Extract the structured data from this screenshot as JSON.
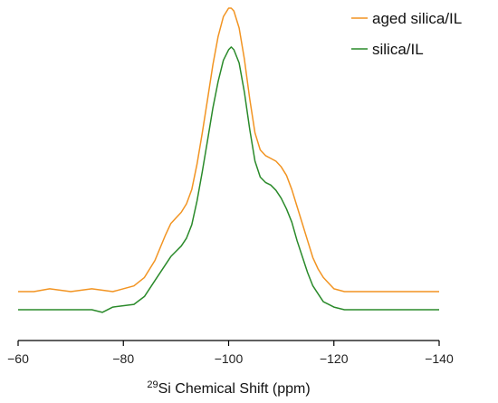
{
  "chart_data": {
    "type": "line",
    "title": "",
    "xlabel_sup": "29",
    "xlabel": "Si Chemical Shift (ppm)",
    "ylabel": "",
    "xlim": [
      -60,
      -140
    ],
    "x_reversed": true,
    "xticks": [
      -60,
      -80,
      -100,
      -120,
      -140
    ],
    "xtick_labels": [
      "−60",
      "−80",
      "−100",
      "−120",
      "−140"
    ],
    "y_axis_shown": false,
    "grid": false,
    "legend_position": "top-right",
    "series": [
      {
        "name": "aged silica/IL",
        "color": "#F29422",
        "x": [
          -60,
          -63,
          -66,
          -70,
          -74,
          -78,
          -82,
          -84,
          -86,
          -88,
          -89,
          -90,
          -91,
          -92,
          -93,
          -94,
          -95,
          -96,
          -97,
          -98,
          -99,
          -100,
          -100.5,
          -101,
          -102,
          -103,
          -104,
          -105,
          -106,
          -107,
          -108,
          -109,
          -110,
          -111,
          -112,
          -113,
          -114,
          -115,
          -116,
          -117,
          -118,
          -119,
          -120,
          -122,
          -125,
          -130,
          -135,
          -140
        ],
        "y": [
          0.0,
          0.0,
          0.01,
          0.0,
          0.01,
          0.0,
          0.02,
          0.05,
          0.11,
          0.2,
          0.24,
          0.26,
          0.28,
          0.31,
          0.36,
          0.45,
          0.56,
          0.68,
          0.8,
          0.9,
          0.97,
          1.0,
          1.0,
          0.99,
          0.93,
          0.82,
          0.68,
          0.56,
          0.5,
          0.48,
          0.47,
          0.46,
          0.44,
          0.41,
          0.36,
          0.3,
          0.24,
          0.18,
          0.12,
          0.08,
          0.05,
          0.03,
          0.01,
          0.0,
          0.0,
          0.0,
          0.0,
          0.0
        ]
      },
      {
        "name": "silica/IL",
        "color": "#2A8A2A",
        "x": [
          -60,
          -63,
          -66,
          -70,
          -74,
          -76,
          -78,
          -82,
          -84,
          -86,
          -88,
          -89,
          -90,
          -91,
          -92,
          -93,
          -94,
          -95,
          -96,
          -97,
          -98,
          -99,
          -100,
          -100.5,
          -101,
          -102,
          -103,
          -104,
          -105,
          -106,
          -107,
          -108,
          -109,
          -110,
          -111,
          -112,
          -113,
          -114,
          -115,
          -116,
          -117,
          -118,
          -119,
          -120,
          -122,
          -125,
          -130,
          -135,
          -140
        ],
        "y": [
          0.0,
          0.0,
          0.0,
          0.0,
          0.0,
          -0.01,
          0.01,
          0.02,
          0.05,
          0.11,
          0.17,
          0.2,
          0.22,
          0.24,
          0.27,
          0.32,
          0.41,
          0.52,
          0.64,
          0.76,
          0.86,
          0.94,
          0.98,
          0.99,
          0.98,
          0.93,
          0.82,
          0.68,
          0.56,
          0.5,
          0.48,
          0.47,
          0.45,
          0.42,
          0.38,
          0.33,
          0.26,
          0.2,
          0.14,
          0.09,
          0.06,
          0.03,
          0.02,
          0.01,
          0.0,
          0.0,
          0.0,
          0.0,
          0.0
        ]
      }
    ]
  }
}
